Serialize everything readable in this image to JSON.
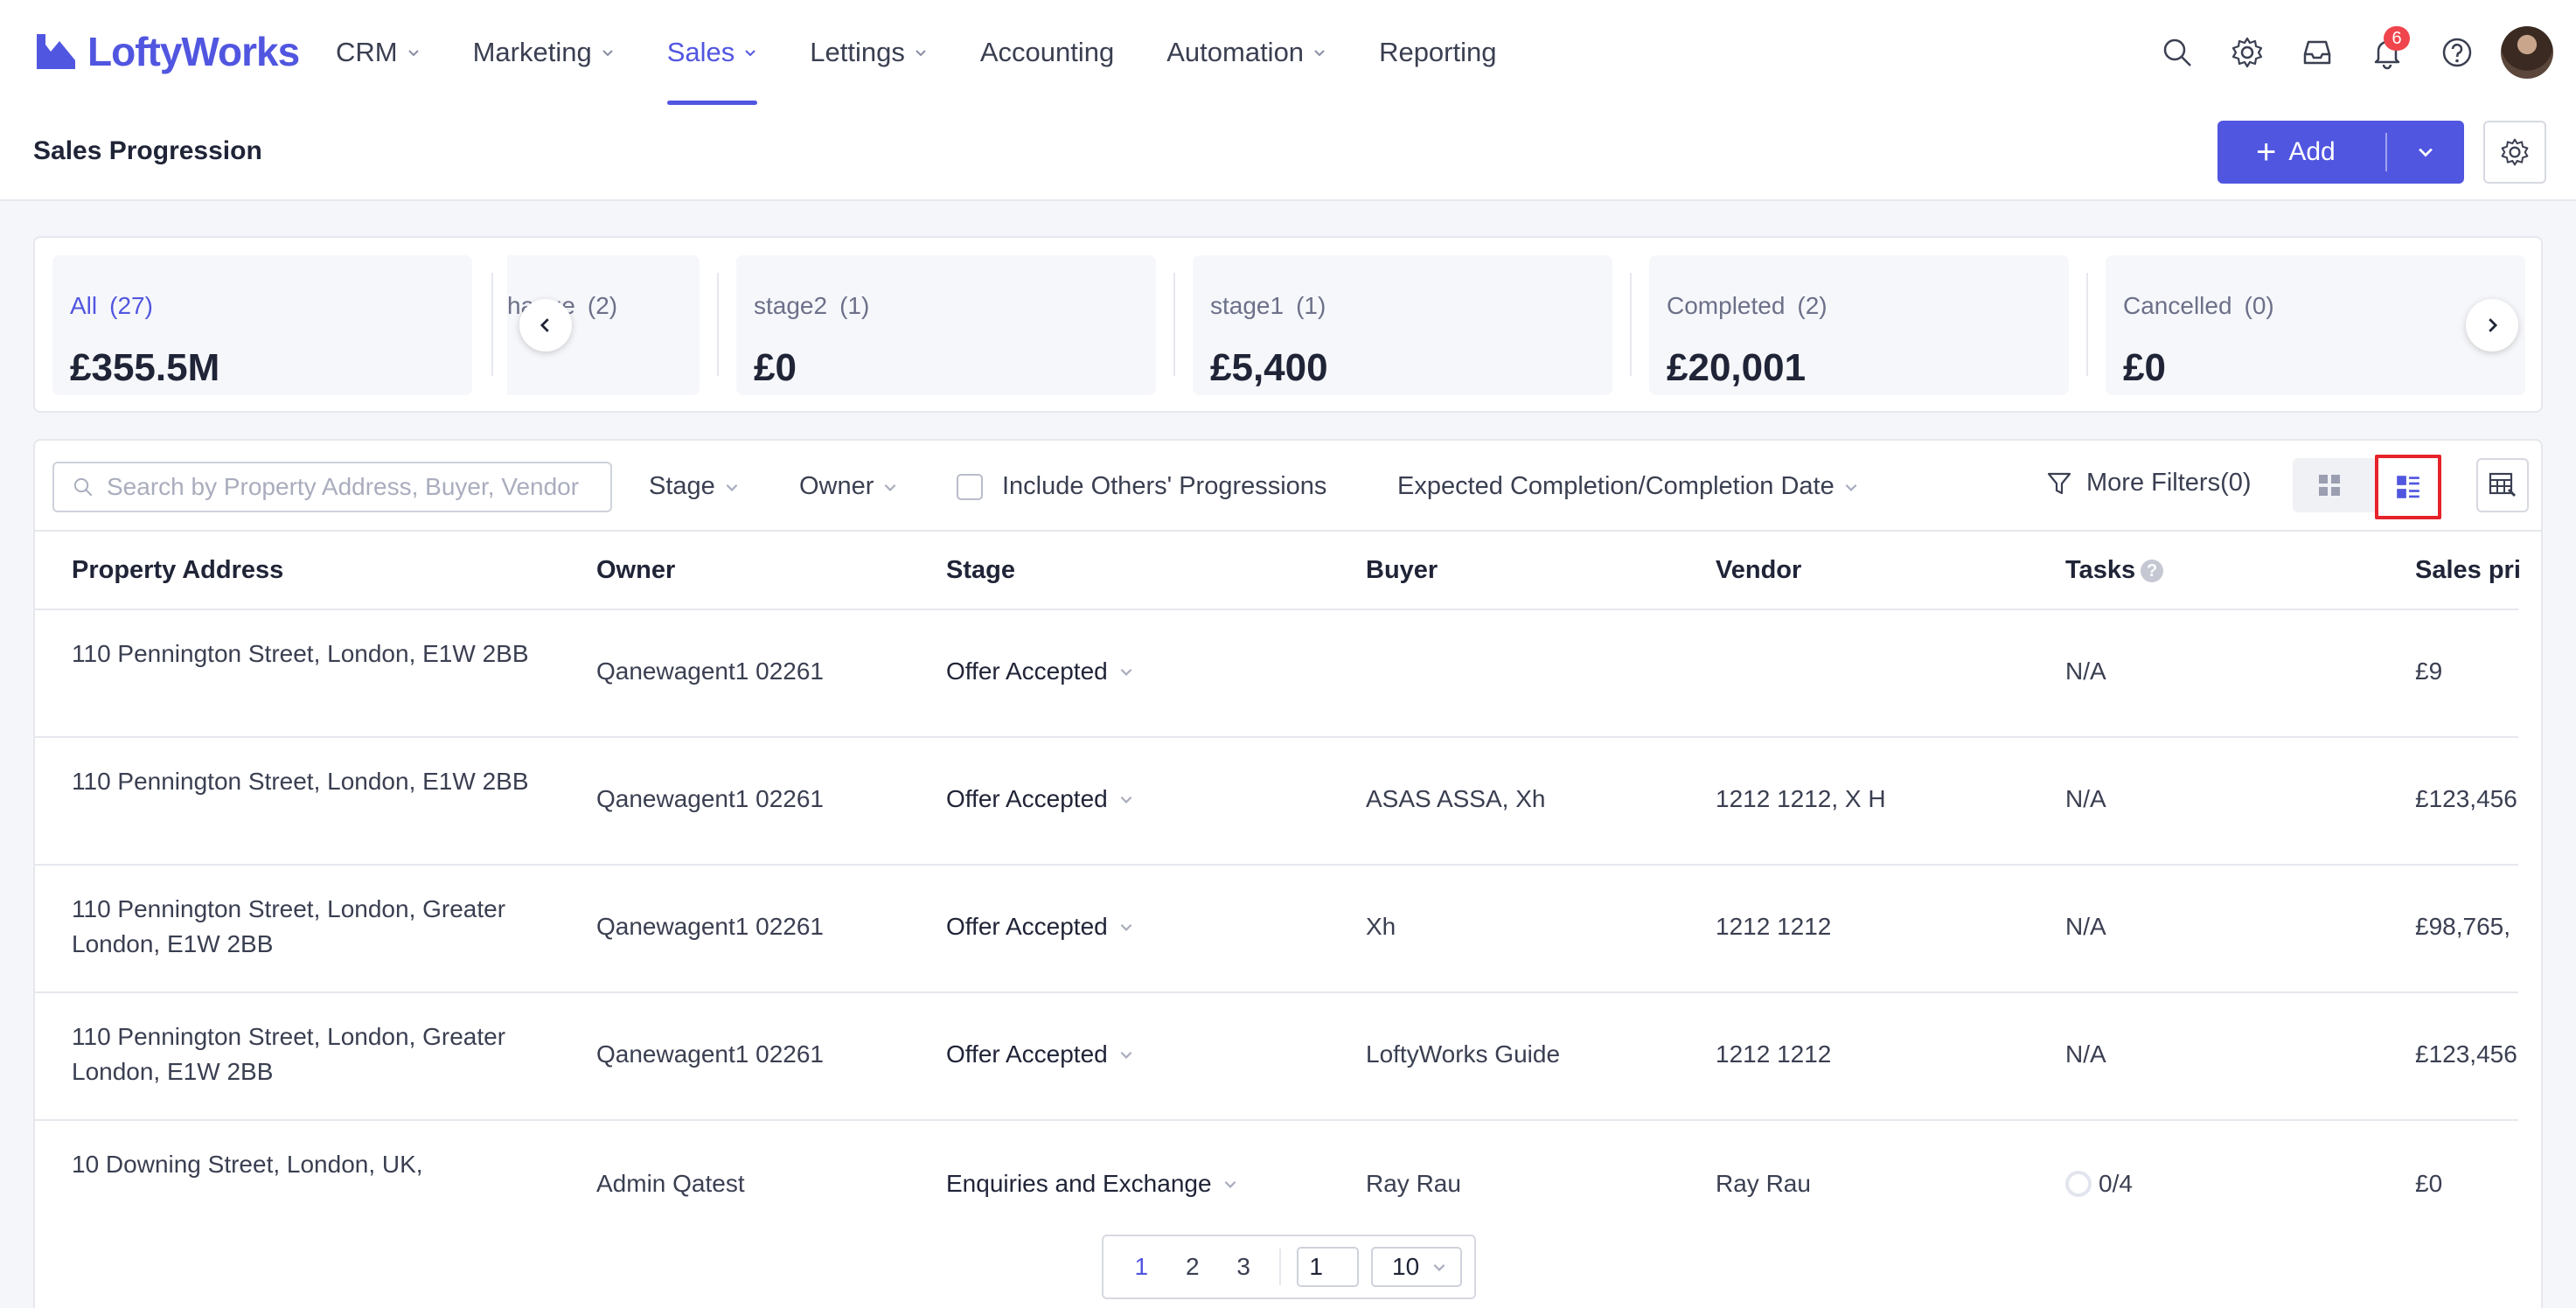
{
  "brand": {
    "name": "LoftyWorks",
    "accent": "#5156e0"
  },
  "nav": {
    "items": [
      {
        "label": "CRM",
        "has_dropdown": true,
        "active": false
      },
      {
        "label": "Marketing",
        "has_dropdown": true,
        "active": false
      },
      {
        "label": "Sales",
        "has_dropdown": true,
        "active": true
      },
      {
        "label": "Lettings",
        "has_dropdown": true,
        "active": false
      },
      {
        "label": "Accounting",
        "has_dropdown": false,
        "active": false
      },
      {
        "label": "Automation",
        "has_dropdown": true,
        "active": false
      },
      {
        "label": "Reporting",
        "has_dropdown": false,
        "active": false
      }
    ],
    "icons": [
      "search-icon",
      "gear-icon",
      "inbox-icon",
      "bell-icon",
      "help-icon"
    ],
    "notification_count": "6"
  },
  "header": {
    "title": "Sales Progression",
    "add_label": "Add"
  },
  "stats": [
    {
      "label": "All",
      "count": "(27)",
      "value": "£355.5M",
      "active": true
    },
    {
      "label": "hange",
      "count": "(2)",
      "value": "",
      "active": false
    },
    {
      "label": "stage2",
      "count": "(1)",
      "value": "£0",
      "active": false
    },
    {
      "label": "stage1",
      "count": "(1)",
      "value": "£5,400",
      "active": false
    },
    {
      "label": "Completed",
      "count": "(2)",
      "value": "£20,001",
      "active": false
    },
    {
      "label": "Cancelled",
      "count": "(0)",
      "value": "£0",
      "active": false
    }
  ],
  "filters": {
    "search_placeholder": "Search by Property Address, Buyer, Vendor",
    "stage": "Stage",
    "owner": "Owner",
    "include_others": "Include Others' Progressions",
    "date": "Expected Completion/Completion Date",
    "more": "More Filters(0)"
  },
  "table": {
    "columns": [
      "Property Address",
      "Owner",
      "Stage",
      "Buyer",
      "Vendor",
      "Tasks",
      "Sales pri"
    ],
    "rows": [
      {
        "address": "110 Pennington Street, London, E1W 2BB",
        "owner": "Qanewagent1 02261",
        "stage": "Offer Accepted",
        "buyer": "",
        "vendor": "",
        "tasks": "N/A",
        "price": "£9"
      },
      {
        "address": "110 Pennington Street, London, E1W 2BB",
        "owner": "Qanewagent1 02261",
        "stage": "Offer Accepted",
        "buyer": "ASAS ASSA, Xh",
        "vendor": "1212 1212, X H",
        "tasks": "N/A",
        "price": "£123,456"
      },
      {
        "address": "110 Pennington Street, London, Greater London, E1W 2BB",
        "owner": "Qanewagent1 02261",
        "stage": "Offer Accepted",
        "buyer": "Xh",
        "vendor": "1212 1212",
        "tasks": "N/A",
        "price": "£98,765,"
      },
      {
        "address": "110 Pennington Street, London, Greater London, E1W 2BB",
        "owner": "Qanewagent1 02261",
        "stage": "Offer Accepted",
        "buyer": "LoftyWorks Guide",
        "vendor": "1212 1212",
        "tasks": "N/A",
        "price": "£123,456"
      },
      {
        "address": "10 Downing Street, London, UK,",
        "owner": "Admin Qatest",
        "stage": "Enquiries and Exchange",
        "buyer": "Ray Rau",
        "vendor": "Ray Rau",
        "tasks": "0/4",
        "price": "£0"
      }
    ]
  },
  "pagination": {
    "pages": [
      "1",
      "2",
      "3"
    ],
    "current": "1",
    "jump_value": "1",
    "page_size": "10"
  }
}
